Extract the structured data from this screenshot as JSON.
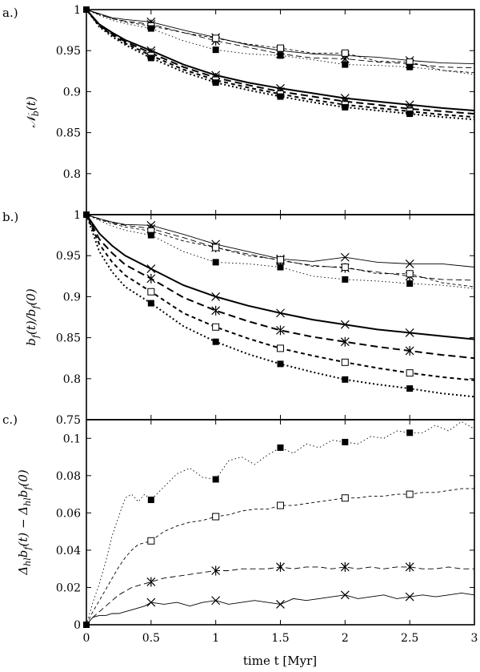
{
  "chart_data": [
    {
      "type": "line",
      "panel_label": "a.)",
      "ylabel": "N_b(t)",
      "xlabel": "",
      "xlim": [
        0,
        3
      ],
      "ylim": [
        0.75,
        1.0
      ],
      "yticks": [
        "0.8",
        "0.85",
        "0.9",
        "0.95",
        "1"
      ],
      "xticks": [],
      "x": [
        0,
        0.1,
        0.2,
        0.3,
        0.5,
        0.75,
        1.0,
        1.25,
        1.5,
        1.75,
        2.0,
        2.25,
        2.5,
        2.75,
        3.0
      ],
      "series": [
        {
          "name": "thick solid x",
          "style": "solid",
          "weight": "thick",
          "marker": "x",
          "values": [
            1,
            0.982,
            0.972,
            0.963,
            0.95,
            0.933,
            0.92,
            0.911,
            0.904,
            0.898,
            0.892,
            0.888,
            0.884,
            0.88,
            0.877
          ]
        },
        {
          "name": "thick long-dash star",
          "style": "longdash",
          "weight": "thick",
          "marker": "star",
          "values": [
            1,
            0.981,
            0.97,
            0.961,
            0.947,
            0.93,
            0.917,
            0.908,
            0.9,
            0.894,
            0.888,
            0.884,
            0.879,
            0.876,
            0.873
          ]
        },
        {
          "name": "thick short-dash open square",
          "style": "shortdash",
          "weight": "thick",
          "marker": "opensquare",
          "values": [
            1,
            0.98,
            0.969,
            0.959,
            0.944,
            0.927,
            0.914,
            0.905,
            0.897,
            0.89,
            0.884,
            0.88,
            0.876,
            0.872,
            0.869
          ]
        },
        {
          "name": "thick dotted filled square",
          "style": "dotted",
          "weight": "thick",
          "marker": "filledsquare",
          "values": [
            1,
            0.979,
            0.967,
            0.957,
            0.941,
            0.924,
            0.911,
            0.902,
            0.894,
            0.887,
            0.881,
            0.877,
            0.873,
            0.869,
            0.866
          ]
        },
        {
          "name": "thin solid x",
          "style": "solid",
          "weight": "thin",
          "marker": "x",
          "values": [
            1,
            0.995,
            0.99,
            0.988,
            0.985,
            0.975,
            0.966,
            0.957,
            0.95,
            0.946,
            0.944,
            0.942,
            0.938,
            0.935,
            0.934
          ]
        },
        {
          "name": "thin long-dash star",
          "style": "longdash",
          "weight": "thin",
          "marker": "star",
          "values": [
            1,
            0.994,
            0.989,
            0.986,
            0.982,
            0.972,
            0.962,
            0.954,
            0.946,
            0.941,
            0.94,
            0.936,
            0.934,
            0.93,
            0.929
          ]
        },
        {
          "name": "thin short-dash open square",
          "style": "shortdash",
          "weight": "thin",
          "marker": "opensquare",
          "values": [
            1,
            0.994,
            0.989,
            0.985,
            0.98,
            0.972,
            0.965,
            0.958,
            0.953,
            0.947,
            0.947,
            0.937,
            0.936,
            0.926,
            0.923
          ]
        },
        {
          "name": "thin dotted filled square",
          "style": "dotted",
          "weight": "thin",
          "marker": "filledsquare",
          "values": [
            1,
            0.993,
            0.987,
            0.983,
            0.977,
            0.962,
            0.951,
            0.946,
            0.944,
            0.939,
            0.933,
            0.932,
            0.93,
            0.926,
            0.921
          ]
        }
      ]
    },
    {
      "type": "line",
      "panel_label": "b.)",
      "ylabel": "b_f(t)/b_f(0)",
      "xlabel": "",
      "xlim": [
        0,
        3
      ],
      "ylim": [
        0.75,
        1.0
      ],
      "yticks": [
        "0.8",
        "0.85",
        "0.9",
        "0.95",
        "1"
      ],
      "xticks": [],
      "x": [
        0,
        0.1,
        0.2,
        0.3,
        0.5,
        0.75,
        1.0,
        1.25,
        1.5,
        1.75,
        2.0,
        2.25,
        2.5,
        2.75,
        3.0
      ],
      "series": [
        {
          "name": "thick solid x",
          "style": "solid",
          "weight": "thick",
          "marker": "x",
          "values": [
            1,
            0.977,
            0.962,
            0.95,
            0.934,
            0.914,
            0.9,
            0.889,
            0.88,
            0.872,
            0.866,
            0.86,
            0.856,
            0.852,
            0.848
          ]
        },
        {
          "name": "thick long-dash star",
          "style": "longdash",
          "weight": "thick",
          "marker": "star",
          "values": [
            1,
            0.97,
            0.953,
            0.939,
            0.922,
            0.899,
            0.883,
            0.87,
            0.859,
            0.851,
            0.845,
            0.839,
            0.834,
            0.829,
            0.825
          ]
        },
        {
          "name": "thick short-dash open square",
          "style": "shortdash",
          "weight": "thick",
          "marker": "opensquare",
          "values": [
            1,
            0.964,
            0.942,
            0.926,
            0.906,
            0.88,
            0.863,
            0.849,
            0.837,
            0.828,
            0.82,
            0.813,
            0.807,
            0.802,
            0.798
          ]
        },
        {
          "name": "thick dotted filled square",
          "style": "dotted",
          "weight": "thick",
          "marker": "filledsquare",
          "values": [
            1,
            0.955,
            0.93,
            0.912,
            0.892,
            0.864,
            0.845,
            0.83,
            0.818,
            0.808,
            0.799,
            0.793,
            0.788,
            0.782,
            0.778
          ]
        },
        {
          "name": "thin solid x",
          "style": "solid",
          "weight": "thin",
          "marker": "x",
          "values": [
            1,
            0.995,
            0.991,
            0.988,
            0.987,
            0.976,
            0.964,
            0.955,
            0.946,
            0.943,
            0.948,
            0.942,
            0.94,
            0.94,
            0.936
          ]
        },
        {
          "name": "thin long-dash star",
          "style": "longdash",
          "weight": "thin",
          "marker": "star",
          "values": [
            1,
            0.995,
            0.99,
            0.987,
            0.983,
            0.972,
            0.96,
            0.952,
            0.944,
            0.938,
            0.935,
            0.93,
            0.925,
            0.921,
            0.92
          ]
        },
        {
          "name": "thin short-dash open square",
          "style": "shortdash",
          "weight": "thin",
          "marker": "opensquare",
          "values": [
            1,
            0.994,
            0.989,
            0.985,
            0.98,
            0.968,
            0.96,
            0.95,
            0.945,
            0.937,
            0.936,
            0.928,
            0.928,
            0.917,
            0.912
          ]
        },
        {
          "name": "thin dotted filled square",
          "style": "dotted",
          "weight": "thin",
          "marker": "filledsquare",
          "values": [
            1,
            0.993,
            0.986,
            0.981,
            0.975,
            0.955,
            0.942,
            0.94,
            0.936,
            0.925,
            0.921,
            0.919,
            0.916,
            0.914,
            0.91
          ]
        }
      ]
    },
    {
      "type": "line",
      "panel_label": "c.)",
      "ylabel": "Δ_hl b_f(t) − Δ_hl b_f(0)",
      "xlabel": "time t [Myr]",
      "xlim": [
        0,
        3
      ],
      "ylim": [
        0,
        0.11
      ],
      "yticks": [
        "0",
        "0.02",
        "0.04",
        "0.06",
        "0.08",
        "0.1"
      ],
      "top_tick_label": "0.75",
      "xticks": [
        "0",
        "0.5",
        "1",
        "1.5",
        "2",
        "2.5",
        "3"
      ],
      "x": [
        0,
        0.05,
        0.1,
        0.15,
        0.2,
        0.25,
        0.3,
        0.35,
        0.4,
        0.45,
        0.5,
        0.6,
        0.7,
        0.8,
        0.9,
        1.0,
        1.1,
        1.2,
        1.3,
        1.4,
        1.5,
        1.6,
        1.7,
        1.8,
        1.9,
        2.0,
        2.1,
        2.2,
        2.3,
        2.4,
        2.5,
        2.6,
        2.7,
        2.8,
        2.9,
        3.0
      ],
      "series": [
        {
          "name": "thin dotted filled square",
          "style": "dotted",
          "weight": "thin",
          "marker": "filledsquare",
          "values": [
            0,
            0.012,
            0.022,
            0.034,
            0.048,
            0.058,
            0.068,
            0.07,
            0.066,
            0.07,
            0.067,
            0.074,
            0.081,
            0.084,
            0.079,
            0.078,
            0.088,
            0.09,
            0.086,
            0.091,
            0.095,
            0.092,
            0.097,
            0.095,
            0.099,
            0.098,
            0.097,
            0.101,
            0.1,
            0.104,
            0.103,
            0.103,
            0.107,
            0.104,
            0.109,
            0.105
          ]
        },
        {
          "name": "thin short-dash open square",
          "style": "shortdash",
          "weight": "thin",
          "marker": "opensquare",
          "values": [
            0,
            0.007,
            0.013,
            0.019,
            0.025,
            0.031,
            0.036,
            0.04,
            0.043,
            0.044,
            0.045,
            0.05,
            0.053,
            0.055,
            0.056,
            0.058,
            0.059,
            0.061,
            0.062,
            0.062,
            0.064,
            0.064,
            0.065,
            0.066,
            0.067,
            0.068,
            0.068,
            0.069,
            0.069,
            0.07,
            0.07,
            0.071,
            0.071,
            0.072,
            0.073,
            0.073
          ]
        },
        {
          "name": "thin long-dash star",
          "style": "longdash",
          "weight": "thin",
          "marker": "star",
          "values": [
            0,
            0.004,
            0.007,
            0.01,
            0.013,
            0.016,
            0.018,
            0.02,
            0.021,
            0.022,
            0.023,
            0.025,
            0.026,
            0.027,
            0.028,
            0.029,
            0.029,
            0.03,
            0.03,
            0.03,
            0.031,
            0.03,
            0.031,
            0.031,
            0.03,
            0.031,
            0.03,
            0.031,
            0.03,
            0.031,
            0.031,
            0.03,
            0.03,
            0.031,
            0.03,
            0.03
          ]
        },
        {
          "name": "thin solid x",
          "style": "solid",
          "weight": "thin",
          "marker": "x",
          "values": [
            0,
            0.004,
            0.005,
            0.005,
            0.006,
            0.006,
            0.007,
            0.008,
            0.009,
            0.01,
            0.012,
            0.011,
            0.012,
            0.01,
            0.012,
            0.013,
            0.011,
            0.012,
            0.013,
            0.012,
            0.011,
            0.014,
            0.013,
            0.014,
            0.015,
            0.016,
            0.014,
            0.015,
            0.016,
            0.014,
            0.015,
            0.016,
            0.015,
            0.016,
            0.017,
            0.016
          ]
        }
      ]
    }
  ]
}
